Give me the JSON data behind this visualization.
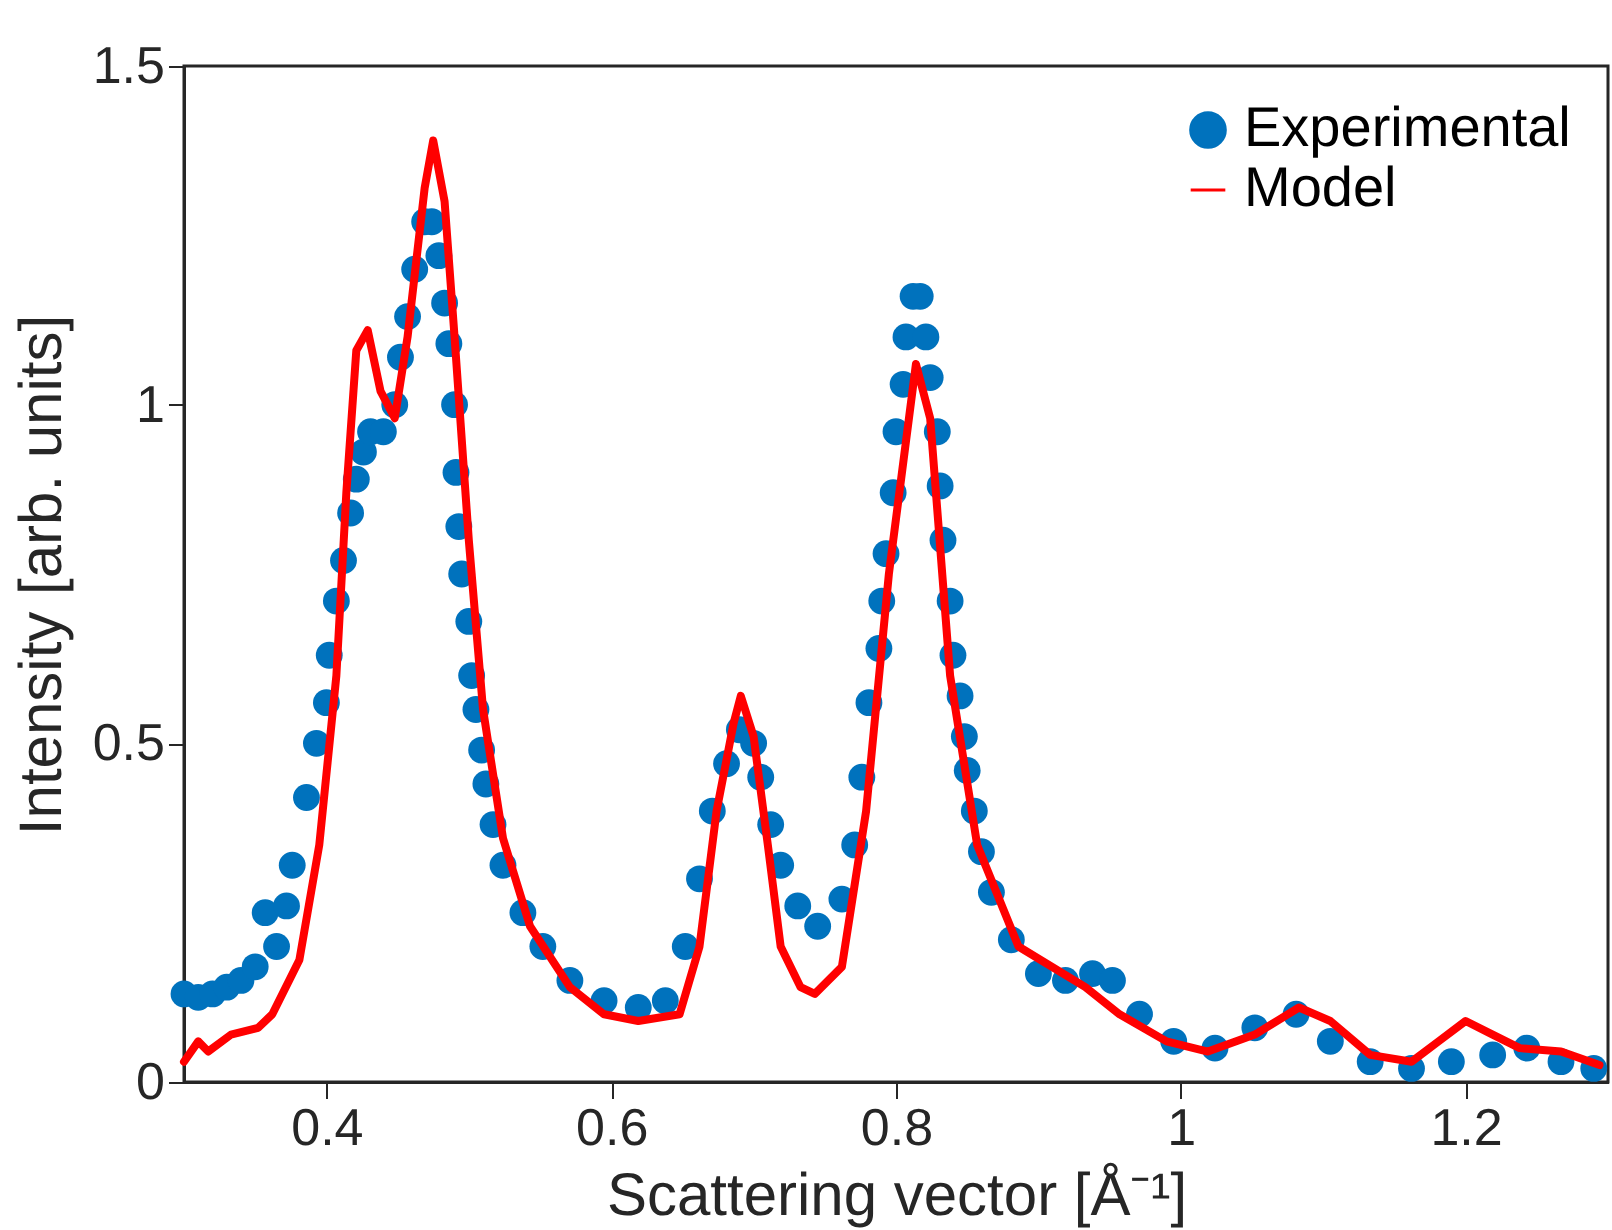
{
  "chart_data": {
    "type": "line",
    "xlabel": "Scattering vector [Å⁻¹]",
    "ylabel": "Intensity [arb. units]",
    "xlim": [
      0.3,
      1.3
    ],
    "xticks": [
      0.4,
      0.6,
      0.8,
      1,
      1.2
    ],
    "ylim": [
      0,
      1.5
    ],
    "yticks": [
      0,
      0.5,
      1,
      1.5
    ],
    "grid": false,
    "legend": "top right",
    "series": [
      {
        "name": "Experimental",
        "type": "scatter",
        "marker": "circle",
        "color": "#0072bd",
        "x": [
          0.3,
          0.31,
          0.32,
          0.33,
          0.34,
          0.35,
          0.357,
          0.365,
          0.372,
          0.376,
          0.386,
          0.393,
          0.4,
          0.402,
          0.407,
          0.412,
          0.417,
          0.421,
          0.426,
          0.431,
          0.44,
          0.448,
          0.452,
          0.457,
          0.462,
          0.469,
          0.474,
          0.479,
          0.483,
          0.486,
          0.49,
          0.491,
          0.493,
          0.495,
          0.5,
          0.502,
          0.505,
          0.509,
          0.512,
          0.517,
          0.524,
          0.538,
          0.552,
          0.571,
          0.595,
          0.619,
          0.638,
          0.652,
          0.662,
          0.671,
          0.681,
          0.69,
          0.7,
          0.705,
          0.712,
          0.719,
          0.731,
          0.745,
          0.762,
          0.771,
          0.776,
          0.781,
          0.788,
          0.79,
          0.793,
          0.798,
          0.8,
          0.805,
          0.807,
          0.812,
          0.817,
          0.821,
          0.824,
          0.829,
          0.831,
          0.833,
          0.838,
          0.84,
          0.845,
          0.848,
          0.85,
          0.855,
          0.86,
          0.867,
          0.881,
          0.9,
          0.919,
          0.938,
          0.952,
          0.971,
          0.995,
          1.024,
          1.052,
          1.081,
          1.105,
          1.133,
          1.162,
          1.19,
          1.219,
          1.243,
          1.267,
          1.29
        ],
        "values": [
          0.13,
          0.125,
          0.13,
          0.14,
          0.15,
          0.17,
          0.25,
          0.2,
          0.26,
          0.32,
          0.42,
          0.5,
          0.56,
          0.63,
          0.71,
          0.77,
          0.84,
          0.89,
          0.93,
          0.96,
          0.96,
          1.0,
          1.07,
          1.13,
          1.2,
          1.27,
          1.27,
          1.22,
          1.15,
          1.09,
          1.0,
          0.9,
          0.82,
          0.75,
          0.68,
          0.6,
          0.55,
          0.49,
          0.44,
          0.38,
          0.32,
          0.25,
          0.2,
          0.15,
          0.12,
          0.11,
          0.12,
          0.2,
          0.3,
          0.4,
          0.47,
          0.52,
          0.5,
          0.45,
          0.38,
          0.32,
          0.26,
          0.23,
          0.27,
          0.35,
          0.45,
          0.56,
          0.64,
          0.71,
          0.78,
          0.87,
          0.96,
          1.03,
          1.1,
          1.16,
          1.16,
          1.1,
          1.04,
          0.96,
          0.88,
          0.8,
          0.71,
          0.63,
          0.57,
          0.51,
          0.46,
          0.4,
          0.34,
          0.28,
          0.21,
          0.16,
          0.15,
          0.16,
          0.15,
          0.1,
          0.06,
          0.05,
          0.08,
          0.1,
          0.06,
          0.03,
          0.02,
          0.03,
          0.04,
          0.05,
          0.03,
          0.02
        ]
      },
      {
        "name": "Model",
        "line_style": "solid",
        "color": "#ff0000",
        "x": [
          0.3,
          0.31,
          0.317,
          0.333,
          0.352,
          0.362,
          0.381,
          0.395,
          0.407,
          0.414,
          0.421,
          0.429,
          0.438,
          0.448,
          0.457,
          0.469,
          0.475,
          0.483,
          0.49,
          0.5,
          0.51,
          0.524,
          0.543,
          0.571,
          0.595,
          0.619,
          0.648,
          0.662,
          0.674,
          0.686,
          0.691,
          0.7,
          0.71,
          0.719,
          0.733,
          0.743,
          0.762,
          0.779,
          0.795,
          0.814,
          0.824,
          0.838,
          0.857,
          0.886,
          0.933,
          0.957,
          0.99,
          1.019,
          1.052,
          1.083,
          1.105,
          1.133,
          1.162,
          1.181,
          1.2,
          1.219,
          1.238,
          1.267,
          1.294
        ],
        "values": [
          0.03,
          0.06,
          0.045,
          0.07,
          0.08,
          0.1,
          0.18,
          0.35,
          0.6,
          0.87,
          1.08,
          1.11,
          1.02,
          0.98,
          1.1,
          1.32,
          1.39,
          1.3,
          1.1,
          0.8,
          0.55,
          0.36,
          0.23,
          0.14,
          0.1,
          0.09,
          0.1,
          0.2,
          0.4,
          0.53,
          0.57,
          0.51,
          0.35,
          0.2,
          0.14,
          0.13,
          0.17,
          0.4,
          0.75,
          1.06,
          0.98,
          0.6,
          0.35,
          0.2,
          0.14,
          0.1,
          0.06,
          0.045,
          0.07,
          0.11,
          0.09,
          0.04,
          0.03,
          0.06,
          0.09,
          0.07,
          0.05,
          0.045,
          0.025
        ]
      }
    ]
  }
}
